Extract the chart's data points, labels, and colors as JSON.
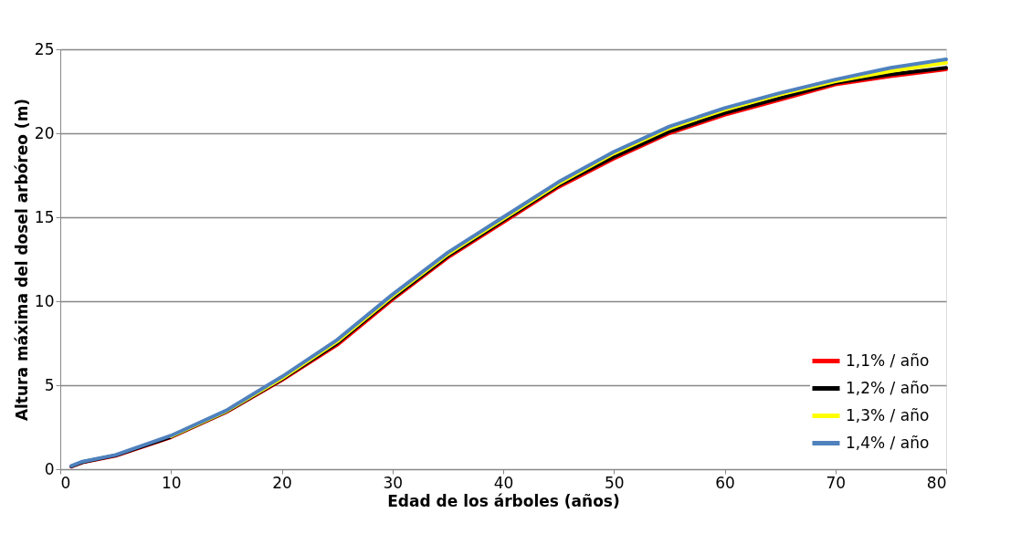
{
  "chart_data": {
    "type": "line",
    "xlabel": "Edad de los árboles (años)",
    "ylabel": "Altura máxima del dosel arbóreo (m)",
    "x": [
      1,
      2,
      5,
      10,
      15,
      20,
      25,
      30,
      35,
      40,
      45,
      50,
      55,
      60,
      65,
      70,
      75,
      80
    ],
    "series": [
      {
        "name": "1,1% / año",
        "color": "#ff0000",
        "values": [
          0.15,
          0.4,
          0.8,
          1.9,
          3.4,
          5.3,
          7.4,
          10.1,
          12.6,
          14.7,
          16.8,
          18.5,
          20.0,
          21.1,
          22.0,
          22.9,
          23.4,
          23.8
        ]
      },
      {
        "name": "1,2% / año",
        "color": "#000000",
        "values": [
          0.17,
          0.42,
          0.82,
          1.93,
          3.43,
          5.35,
          7.5,
          10.2,
          12.7,
          14.8,
          16.9,
          18.6,
          20.1,
          21.2,
          22.1,
          23.0,
          23.5,
          23.9
        ]
      },
      {
        "name": "1,3% / año",
        "color": "#ffff00",
        "values": [
          null,
          null,
          null,
          1.96,
          3.46,
          5.4,
          7.6,
          10.3,
          12.8,
          14.9,
          17.0,
          18.8,
          20.3,
          21.4,
          22.3,
          23.1,
          23.7,
          24.2
        ]
      },
      {
        "name": "1,4% / año",
        "color": "#4f81bd",
        "values": [
          0.2,
          0.45,
          0.85,
          2.0,
          3.5,
          5.5,
          7.7,
          10.4,
          12.9,
          15.0,
          17.1,
          18.9,
          20.4,
          21.5,
          22.4,
          23.2,
          23.9,
          24.4
        ]
      }
    ],
    "xlim": [
      0,
      80
    ],
    "xticks": [
      0,
      10,
      20,
      30,
      40,
      50,
      60,
      70,
      80
    ],
    "ylim": [
      0,
      25
    ],
    "yticks": [
      0,
      5,
      10,
      15,
      20,
      25
    ],
    "grid": "y",
    "legend": "bottom right",
    "marker": "none",
    "line_style": "solid"
  }
}
